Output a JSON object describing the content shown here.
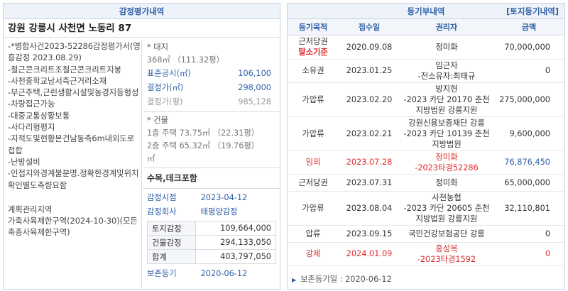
{
  "left": {
    "header": "감정평가내역",
    "address": "강원 강릉시 사천면 노동리 87",
    "notes": "-*병합사건2023-52286감정평가서(영흥감정 2023.08.29)\n-철근콘크리트조철근콘크리트지붕\n-사천중학교남서측근거리소재\n-부근주택,근린생활시설및농경지등형성\n-차량접근가능\n-대중교통상황보통\n-사다리형평지\n-지적도및현황본건남동측6m내외도로접합\n-난방설비\n-인접지와경계불분명.정확한경계및위치확인별도측량요함",
    "zoning": "계획관리지역\n가축사육제한구역(2024-10-30)(모든축종사육제한구역)",
    "land_title": "* 대지",
    "land_area": "368㎡ （111.32평）",
    "land_rows": [
      {
        "label": "표준공시(㎡)",
        "value": "106,100"
      },
      {
        "label": "결정가(㎡)",
        "value": "298,000"
      },
      {
        "label": "결정가(평)",
        "value": "985,128"
      }
    ],
    "building_title": "* 건물",
    "building_lines": [
      "1층 주택 73.75㎡ （22.31평）",
      "2층 주택 65.32㎡ （19.76평）",
      "㎡"
    ],
    "trees": "수목,데크포함",
    "appraisal_date_label": "감정시점",
    "appraisal_date": "2023-04-12",
    "appraisal_company_label": "감정회사",
    "appraisal_company": "태평양감정",
    "values": [
      {
        "label": "토지감정",
        "value": "109,664,000"
      },
      {
        "label": "건물감정",
        "value": "294,133,050"
      },
      {
        "label": "합계",
        "value": "403,797,050"
      }
    ],
    "preserve_label": "보존등기",
    "preserve_date": "2020-06-12"
  },
  "right": {
    "header": "등기부내역",
    "link": "[토지등기내역]",
    "columns": [
      "등기목적",
      "접수일",
      "권리자",
      "금액"
    ],
    "rows": [
      {
        "purpose": "근저당권",
        "tag": "말소기준",
        "date": "2020.09.08",
        "holder": "정미화",
        "amount": "70,000,000",
        "red": false
      },
      {
        "purpose": "소유권",
        "date": "2023.01.25",
        "holder": "임근자\n-전소유자:최태규",
        "amount": "0",
        "red": false
      },
      {
        "purpose": "가압류",
        "date": "2023.02.20",
        "holder": "방지현\n-2023 카단 20170 춘천지방법원 강릉지원",
        "amount": "275,000,000",
        "red": false
      },
      {
        "purpose": "가압류",
        "date": "2023.02.21",
        "holder": "강원신용보증재단 강릉\n-2023 카단 10139 춘천지방법원",
        "amount": "9,600,000",
        "red": false
      },
      {
        "purpose": "임의",
        "date": "2023.07.28",
        "holder": "정미화\n-2023타경52286",
        "amount": "76,876,450",
        "red": true,
        "amount_red": false
      },
      {
        "purpose": "근저당권",
        "date": "2023.07.31",
        "holder": "정미화",
        "amount": "65,000,000",
        "red": false
      },
      {
        "purpose": "가압류",
        "date": "2023.08.04",
        "holder": "사천농협\n-2023 카단 20605 춘천지방법원 강릉지원",
        "amount": "32,110,801",
        "red": false
      },
      {
        "purpose": "압류",
        "date": "2023.09.15",
        "holder": "국민건강보험공단 강릉",
        "amount": "0",
        "red": false
      },
      {
        "purpose": "강제",
        "date": "2024.01.09",
        "holder": "홍성복\n-2023타경1592",
        "amount": "0",
        "red": true,
        "amount_red": true
      }
    ],
    "footer_label": "보존등기일 : 2020-06-12"
  }
}
